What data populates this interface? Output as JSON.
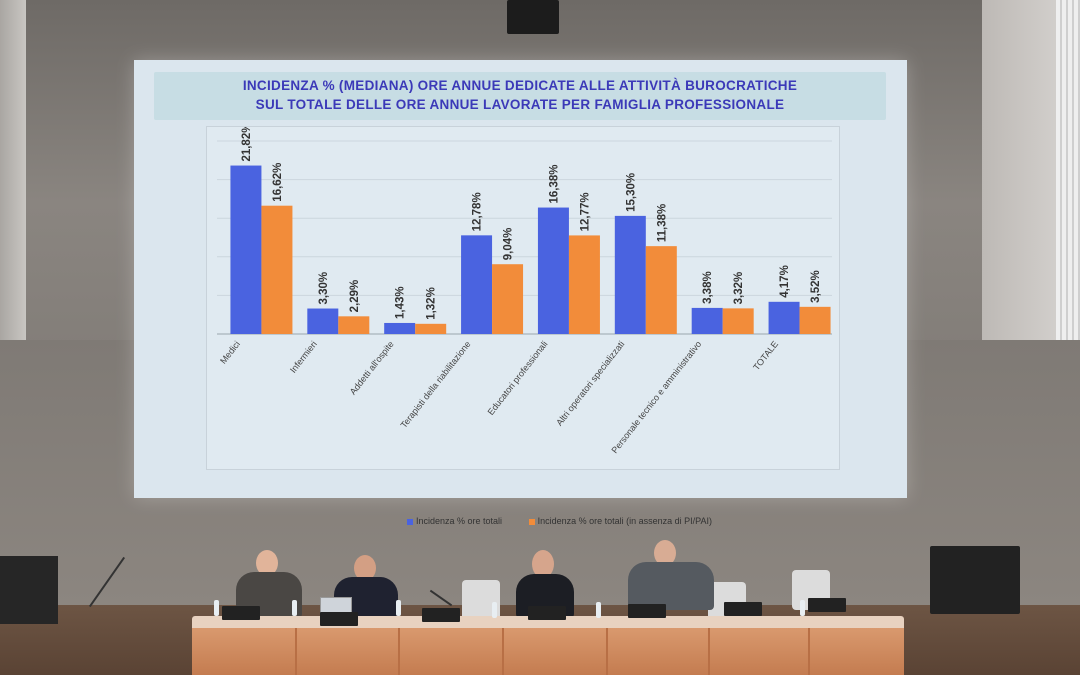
{
  "slide": {
    "title_line1": "INCIDENZA % (MEDIANA) ORE ANNUE DEDICATE ALLE ATTIVITÀ BUROCRATICHE",
    "title_line2": "SUL TOTALE DELLE ORE ANNUE LAVORATE PER FAMIGLIA PROFESSIONALE"
  },
  "chart_data": {
    "type": "bar",
    "title": "INCIDENZA % (MEDIANA) ORE ANNUE DEDICATE ALLE ATTIVITÀ BUROCRATICHE SUL TOTALE DELLE ORE ANNUE LAVORATE PER FAMIGLIA PROFESSIONALE",
    "categories": [
      "Medici",
      "Infermieri",
      "Addetti all'ospite",
      "Terapisti della riabilitazione",
      "Educatori professionali",
      "Altri operatori specializzati",
      "Personale tecnico e amministrativo",
      "TOTALE"
    ],
    "series": [
      {
        "name": "Incidenza % ore totali",
        "color": "#4a63e0",
        "values": [
          21.82,
          3.3,
          1.43,
          12.78,
          16.38,
          15.3,
          3.38,
          4.17
        ],
        "labels": [
          "21,82%",
          "3,30%",
          "1,43%",
          "12,78%",
          "16,38%",
          "15,30%",
          "3,38%",
          "4,17%"
        ]
      },
      {
        "name": "Incidenza % ore totali (in assenza di PI/PAI)",
        "color": "#f28c3a",
        "values": [
          16.62,
          2.29,
          1.32,
          9.04,
          12.77,
          11.38,
          3.32,
          3.52
        ],
        "labels": [
          "16,62%",
          "2,29%",
          "1,32%",
          "9,04%",
          "12,77%",
          "11,38%",
          "3,32%",
          "3,52%"
        ]
      }
    ],
    "ylim": [
      0,
      25
    ],
    "grid": true,
    "legend_position": "bottom"
  }
}
